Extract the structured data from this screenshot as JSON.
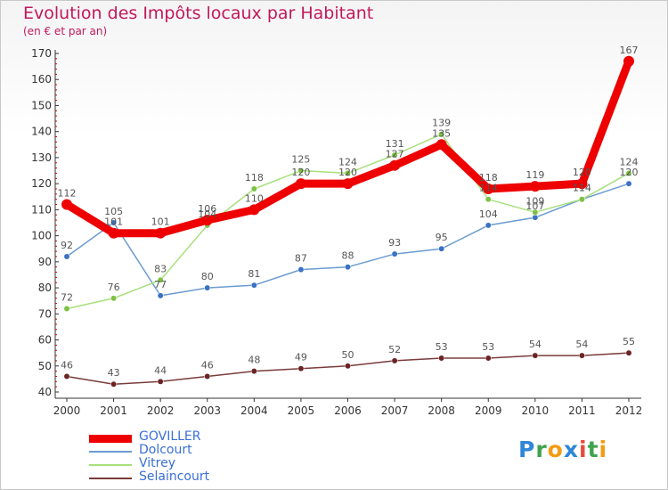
{
  "title": "Evolution des Impôts locaux par Habitant",
  "subtitle": "(en € et par an)",
  "logo": {
    "text": "Proxiti",
    "letters": [
      {
        "ch": "P",
        "color": "#2e86d6"
      },
      {
        "ch": "r",
        "color": "#3fa34d"
      },
      {
        "ch": "o",
        "color": "#f39c12"
      },
      {
        "ch": "x",
        "color": "#2e86d6"
      },
      {
        "ch": "i",
        "color": "#e74c3c"
      },
      {
        "ch": "t",
        "color": "#3fa34d"
      },
      {
        "ch": "i",
        "color": "#f39c12"
      }
    ]
  },
  "chart_data": {
    "type": "line",
    "title": "Evolution des Impôts locaux par Habitant",
    "subtitle": "(en € et par an)",
    "xlabel": "",
    "ylabel": "",
    "x": [
      "2000",
      "2001",
      "2002",
      "2003",
      "2004",
      "2005",
      "2006",
      "2007",
      "2008",
      "2009",
      "2010",
      "2011",
      "2012"
    ],
    "ylim": [
      40,
      170
    ],
    "yticks": [
      40,
      50,
      60,
      70,
      80,
      90,
      100,
      110,
      120,
      130,
      140,
      150,
      160,
      170
    ],
    "grid": false,
    "legend_position": "bottom-left",
    "series": [
      {
        "name": "GOVILLER",
        "color": "#ee0000",
        "marker": "#ee0000",
        "weight": "bold",
        "values": [
          112,
          101,
          101,
          106,
          110,
          120,
          120,
          127,
          135,
          118,
          119,
          120,
          167
        ],
        "labels": [
          "112",
          "101",
          "101",
          "106",
          "110",
          "120",
          "120",
          "127",
          "135",
          "118",
          "119",
          "120",
          "167"
        ]
      },
      {
        "name": "Dolcourt",
        "color": "#6b9bd1",
        "marker": "#3a72c2",
        "weight": "thin",
        "values": [
          92,
          105,
          77,
          80,
          81,
          87,
          88,
          93,
          95,
          104,
          107,
          114,
          120
        ],
        "labels": [
          "92",
          "105",
          "77",
          "80",
          "81",
          "87",
          "88",
          "93",
          "95",
          "104",
          "107",
          "114",
          "120"
        ]
      },
      {
        "name": "Vitrey",
        "color": "#a8e07c",
        "marker": "#7cc242",
        "weight": "thin",
        "values": [
          72,
          76,
          83,
          104,
          118,
          125,
          124,
          131,
          139,
          114,
          109,
          114,
          124
        ],
        "labels": [
          "72",
          "76",
          "83",
          "104",
          "118",
          "125",
          "124",
          "131",
          "139",
          "114",
          "109",
          "114",
          "124"
        ]
      },
      {
        "name": "Selaincourt",
        "color": "#7a3b3b",
        "marker": "#6b2424",
        "weight": "thin",
        "values": [
          46,
          43,
          44,
          46,
          48,
          49,
          50,
          52,
          53,
          53,
          54,
          54,
          55
        ],
        "labels": [
          "46",
          "43",
          "44",
          "46",
          "48",
          "49",
          "50",
          "52",
          "53",
          "53",
          "54",
          "54",
          "55"
        ]
      }
    ]
  }
}
